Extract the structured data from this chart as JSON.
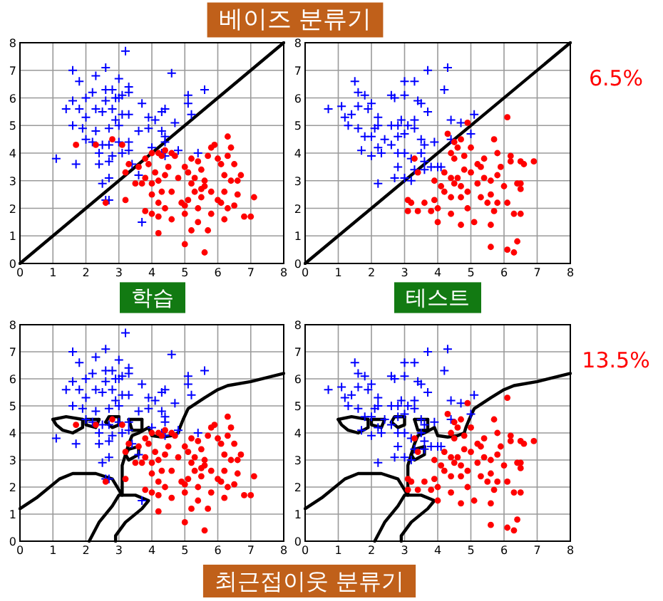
{
  "chart_data": [
    {
      "type": "scatter",
      "xlim": [
        0,
        8
      ],
      "ylim": [
        0,
        8
      ],
      "xticks": [
        0,
        1,
        2,
        3,
        4,
        5,
        6,
        7,
        8
      ],
      "yticks": [
        0,
        1,
        2,
        3,
        4,
        5,
        6,
        7,
        8
      ],
      "grid": true,
      "annotations": [
        "베이즈 분류기",
        "학습"
      ],
      "series": [
        {
          "color": "#0000ff",
          "marker": "cross",
          "x": [
            1.6,
            2.6,
            3.2,
            2.3,
            1.8,
            4.6,
            3.0,
            3.3,
            2.2,
            2.6,
            2.8,
            3.1,
            3.3,
            1.6,
            2.0,
            2.6,
            2.9,
            3.0,
            5.1,
            5.6,
            1.4,
            1.8,
            2.3,
            2.5,
            2.8,
            3.1,
            3.7,
            4.3,
            4.4,
            5.1,
            1.6,
            2.0,
            2.9,
            3.3,
            3.9,
            4.1,
            4.7,
            5.2,
            1.9,
            2.3,
            2.7,
            3.0,
            3.6,
            3.9,
            4.3,
            4.4,
            2.0,
            2.2,
            2.5,
            2.7,
            3.0,
            3.3,
            4.0,
            4.4,
            4.8,
            2.4,
            2.8,
            3.1,
            3.3,
            1.1,
            1.7,
            2.4,
            2.7,
            3.4,
            5.4,
            3.6,
            2.5,
            2.7,
            2.7,
            2.6,
            3.7,
            4.4,
            4.3
          ],
          "values": [
            7.0,
            7.1,
            7.7,
            6.8,
            6.6,
            6.9,
            6.7,
            6.4,
            6.2,
            6.3,
            6.3,
            6.1,
            6.2,
            5.9,
            6.0,
            5.9,
            6.0,
            6.0,
            6.1,
            6.3,
            5.6,
            5.6,
            5.6,
            5.5,
            5.6,
            5.4,
            5.8,
            5.5,
            5.6,
            5.8,
            5.0,
            5.3,
            5.2,
            5.4,
            5.3,
            5.2,
            5.1,
            5.4,
            4.9,
            4.8,
            4.9,
            5.0,
            4.8,
            4.9,
            4.8,
            4.6,
            4.5,
            4.4,
            4.3,
            4.3,
            4.4,
            4.4,
            4.2,
            4.4,
            4.1,
            4.0,
            3.9,
            4.0,
            4.1,
            3.8,
            3.6,
            3.6,
            3.7,
            3.6,
            4.0,
            3.2,
            2.9,
            3.1,
            2.3,
            2.3,
            1.5,
            3.9,
            4.0
          ]
        },
        {
          "color": "#ff0000",
          "marker": "circle",
          "x": [
            1.7,
            2.3,
            2.8,
            3.1,
            3.3,
            3.2,
            2.6,
            3.2,
            3.6,
            3.8,
            3.9,
            4.0,
            4.2,
            4.3,
            4.4,
            4.6,
            4.7,
            4.1,
            4.0,
            4.2,
            4.3,
            4.0,
            4.2,
            4.4,
            4.6,
            4.4,
            4.5,
            4.8,
            5.0,
            5.1,
            5.3,
            5.4,
            5.5,
            5.6,
            5.7,
            5.8,
            5.9,
            6.0,
            6.1,
            6.3,
            6.4,
            6.3,
            6.5,
            6.2,
            6.4,
            6.7,
            6.6,
            5.2,
            5.3,
            5.5,
            5.6,
            5.8,
            6.0,
            6.2,
            6.1,
            6.6,
            7.1,
            5.0,
            5.1,
            5.4,
            5.8,
            6.3,
            6.2,
            6.5,
            6.8,
            7.0,
            4.0,
            4.2,
            4.6,
            5.0,
            5.0,
            5.2,
            5.4,
            5.7,
            4.2,
            5.6,
            3.8,
            3.5,
            3.7,
            4.9,
            5.2,
            5.5,
            3.8
          ],
          "values": [
            4.3,
            4.3,
            4.5,
            4.3,
            3.6,
            3.3,
            2.2,
            2.3,
            3.5,
            3.1,
            3.6,
            4.0,
            4.0,
            3.9,
            4.1,
            4.0,
            3.9,
            3.3,
            2.9,
            3.0,
            2.6,
            2.5,
            2.2,
            2.0,
            2.6,
            3.2,
            3.5,
            3.1,
            3.5,
            3.3,
            3.1,
            3.7,
            3.4,
            3.0,
            3.9,
            4.2,
            4.3,
            3.8,
            3.6,
            4.6,
            4.2,
            3.9,
            3.6,
            3.2,
            3.0,
            3.2,
            3.0,
            2.9,
            2.6,
            2.4,
            2.8,
            2.6,
            2.3,
            2.6,
            2.2,
            2.5,
            2.4,
            2.1,
            2.3,
            2.0,
            1.8,
            2.0,
            1.6,
            2.1,
            1.7,
            1.7,
            1.8,
            1.7,
            1.6,
            1.8,
            0.7,
            1.2,
            1.5,
            1.2,
            1.1,
            0.4,
            1.9,
            2.9,
            2.9,
            2.2,
            3.8,
            2.7,
            3.8
          ]
        },
        {
          "type": "line",
          "color": "#000000",
          "marker": "none",
          "x": [
            0,
            8
          ],
          "values": [
            0,
            8
          ]
        }
      ]
    },
    {
      "type": "scatter",
      "xlim": [
        0,
        8
      ],
      "ylim": [
        0,
        8
      ],
      "xticks": [
        0,
        1,
        2,
        3,
        4,
        5,
        6,
        7,
        8
      ],
      "yticks": [
        0,
        1,
        2,
        3,
        4,
        5,
        6,
        7,
        8
      ],
      "grid": true,
      "annotations": [
        "6.5%",
        "테스트"
      ],
      "series": [
        {
          "color": "#0000ff",
          "marker": "cross",
          "x": [
            0.7,
            1.1,
            1.5,
            1.6,
            1.8,
            1.2,
            1.4,
            1.6,
            1.9,
            2.0,
            2.2,
            2.6,
            2.7,
            3.0,
            3.0,
            3.3,
            3.5,
            3.4,
            3.7,
            4.2,
            3.7,
            4.3,
            1.3,
            1.6,
            2.1,
            2.2,
            2.6,
            2.8,
            2.9,
            3.1,
            3.3,
            2.8,
            3.0,
            3.3,
            3.5,
            3.6,
            3.9,
            4.4,
            4.7,
            5.1,
            4.4,
            5.0,
            1.8,
            2.0,
            2.4,
            2.2,
            2.6,
            1.7,
            2.0,
            2.3,
            2.8,
            3.0,
            3.2,
            3.5,
            3.6,
            3.8,
            2.8,
            3.3,
            2.7,
            3.0,
            3.2,
            2.2,
            4.1,
            4.0,
            3.6
          ],
          "values": [
            5.6,
            5.7,
            6.6,
            6.2,
            6.1,
            5.3,
            5.4,
            5.7,
            5.6,
            5.8,
            5.3,
            6.1,
            6.0,
            6.6,
            6.1,
            6.6,
            5.8,
            5.9,
            5.5,
            6.3,
            7.0,
            7.1,
            5.0,
            4.9,
            4.9,
            5.0,
            5.0,
            5.0,
            5.2,
            5.0,
            5.2,
            4.6,
            4.7,
            4.9,
            4.5,
            4.3,
            4.4,
            5.2,
            5.1,
            5.4,
            4.5,
            4.7,
            4.6,
            4.6,
            4.5,
            4.2,
            4.3,
            4.1,
            3.9,
            4.0,
            4.0,
            4.0,
            3.8,
            4.0,
            3.7,
            3.5,
            3.5,
            3.4,
            3.1,
            3.1,
            3.0,
            2.9,
            3.5,
            3.5,
            3.4
          ]
        },
        {
          "color": "#ff0000",
          "marker": "circle",
          "x": [
            3.4,
            3.3,
            4.3,
            4.5,
            4.7,
            4.6,
            4.4,
            4.5,
            4.8,
            5.0,
            4.9,
            6.1,
            5.7,
            5.8,
            5.2,
            5.4,
            5.3,
            5.0,
            4.8,
            4.6,
            4.4,
            4.2,
            3.9,
            4.1,
            4.5,
            4.7,
            5.2,
            5.4,
            5.6,
            5.8,
            5.9,
            6.2,
            6.2,
            6.5,
            6.6,
            6.9,
            6.0,
            6.4,
            6.5,
            6.5,
            5.6,
            5.8,
            5.5,
            5.7,
            6.1,
            6.3,
            6.5,
            4.9,
            4.7,
            4.4,
            4.2,
            4.0,
            3.9,
            3.6,
            3.8,
            3.1,
            3.2,
            3.1,
            3.4,
            4.0,
            4.4,
            4.7,
            5.1,
            5.6,
            5.6,
            6.1,
            6.3,
            6.4,
            4.9,
            5.3
          ],
          "values": [
            3.3,
            3.8,
            4.7,
            4.4,
            4.5,
            4.2,
            4.0,
            3.8,
            3.9,
            4.2,
            5.1,
            5.3,
            4.5,
            4.0,
            3.6,
            3.8,
            3.5,
            3.3,
            3.4,
            3.1,
            3.1,
            3.3,
            3.0,
            2.8,
            2.9,
            2.8,
            2.9,
            3.1,
            3.0,
            3.2,
            3.5,
            3.7,
            3.9,
            3.7,
            3.6,
            3.7,
            2.8,
            2.9,
            2.7,
            2.9,
            2.5,
            2.2,
            2.2,
            1.9,
            2.2,
            1.8,
            1.8,
            2.6,
            2.4,
            2.4,
            2.6,
            2.0,
            2.3,
            2.2,
            1.9,
            2.3,
            2.2,
            1.9,
            1.9,
            1.5,
            1.8,
            1.4,
            1.5,
            1.4,
            0.6,
            0.5,
            0.4,
            0.8,
            2.0,
            2.4
          ]
        },
        {
          "type": "line",
          "color": "#000000",
          "marker": "none",
          "x": [
            0,
            8
          ],
          "values": [
            0,
            8
          ]
        }
      ]
    },
    {
      "type": "scatter",
      "xlim": [
        0,
        8
      ],
      "ylim": [
        0,
        8
      ],
      "xticks": [
        0,
        1,
        2,
        3,
        4,
        5,
        6,
        7,
        8
      ],
      "yticks": [
        0,
        1,
        2,
        3,
        4,
        5,
        6,
        7,
        8
      ],
      "grid": true,
      "annotations": [
        "최근접이웃 분류기"
      ],
      "series": [
        {
          "color": "#0000ff",
          "marker": "cross",
          "x": [
            1.6,
            2.6,
            3.2,
            2.3,
            1.8,
            4.6,
            3.0,
            3.3,
            2.2,
            2.6,
            2.8,
            3.1,
            3.3,
            1.6,
            2.0,
            2.6,
            2.9,
            3.0,
            5.1,
            5.6,
            1.4,
            1.8,
            2.3,
            2.5,
            2.8,
            3.1,
            3.7,
            4.3,
            4.4,
            5.1,
            1.6,
            2.0,
            2.9,
            3.3,
            3.9,
            4.1,
            4.7,
            5.2,
            1.9,
            2.3,
            2.7,
            3.0,
            3.6,
            3.9,
            4.3,
            4.4,
            2.0,
            2.2,
            2.5,
            2.7,
            3.0,
            3.3,
            4.0,
            4.4,
            4.8,
            2.4,
            2.8,
            3.1,
            3.3,
            1.1,
            1.7,
            2.4,
            2.7,
            3.4,
            5.4,
            3.6,
            2.5,
            2.7,
            2.7,
            2.6,
            3.7,
            4.4,
            4.3
          ],
          "values": [
            7.0,
            7.1,
            7.7,
            6.8,
            6.6,
            6.9,
            6.7,
            6.4,
            6.2,
            6.3,
            6.3,
            6.1,
            6.2,
            5.9,
            6.0,
            5.9,
            6.0,
            6.0,
            6.1,
            6.3,
            5.6,
            5.6,
            5.6,
            5.5,
            5.6,
            5.4,
            5.8,
            5.5,
            5.6,
            5.8,
            5.0,
            5.3,
            5.2,
            5.4,
            5.3,
            5.2,
            5.1,
            5.4,
            4.9,
            4.8,
            4.9,
            5.0,
            4.8,
            4.9,
            4.8,
            4.6,
            4.5,
            4.4,
            4.3,
            4.3,
            4.4,
            4.4,
            4.2,
            4.4,
            4.1,
            4.0,
            3.9,
            4.0,
            4.1,
            3.8,
            3.6,
            3.6,
            3.7,
            3.6,
            4.0,
            3.2,
            2.9,
            3.1,
            2.3,
            2.3,
            1.5,
            3.9,
            4.0
          ]
        },
        {
          "color": "#ff0000",
          "marker": "circle",
          "x": [
            1.7,
            2.3,
            2.8,
            3.1,
            3.3,
            3.2,
            2.6,
            3.2,
            3.6,
            3.8,
            3.9,
            4.0,
            4.2,
            4.3,
            4.4,
            4.6,
            4.7,
            4.1,
            4.0,
            4.2,
            4.3,
            4.0,
            4.2,
            4.4,
            4.6,
            4.4,
            4.5,
            4.8,
            5.0,
            5.1,
            5.3,
            5.4,
            5.5,
            5.6,
            5.7,
            5.8,
            5.9,
            6.0,
            6.1,
            6.3,
            6.4,
            6.3,
            6.5,
            6.2,
            6.4,
            6.7,
            6.6,
            5.2,
            5.3,
            5.5,
            5.6,
            5.8,
            6.0,
            6.2,
            6.1,
            6.6,
            7.1,
            5.0,
            5.1,
            5.4,
            5.8,
            6.3,
            6.2,
            6.5,
            6.8,
            7.0,
            4.0,
            4.2,
            4.6,
            5.0,
            5.0,
            5.2,
            5.4,
            5.7,
            4.2,
            5.6,
            3.8,
            3.5,
            3.7,
            4.9,
            5.2,
            5.5,
            3.8
          ],
          "values": [
            4.3,
            4.3,
            4.5,
            4.3,
            3.6,
            3.3,
            2.2,
            2.3,
            3.5,
            3.1,
            3.6,
            4.0,
            4.0,
            3.9,
            4.1,
            4.0,
            3.9,
            3.3,
            2.9,
            3.0,
            2.6,
            2.5,
            2.2,
            2.0,
            2.6,
            3.2,
            3.5,
            3.1,
            3.5,
            3.3,
            3.1,
            3.7,
            3.4,
            3.0,
            3.9,
            4.2,
            4.3,
            3.8,
            3.6,
            4.6,
            4.2,
            3.9,
            3.6,
            3.2,
            3.0,
            3.2,
            3.0,
            2.9,
            2.6,
            2.4,
            2.8,
            2.6,
            2.3,
            2.6,
            2.2,
            2.5,
            2.4,
            2.1,
            2.3,
            2.0,
            1.8,
            2.0,
            1.6,
            2.1,
            1.7,
            1.7,
            1.8,
            1.7,
            1.6,
            1.8,
            0.7,
            1.2,
            1.5,
            1.2,
            1.1,
            0.4,
            1.9,
            2.9,
            2.9,
            2.2,
            3.8,
            2.7,
            3.8
          ]
        },
        {
          "type": "line",
          "color": "#000000",
          "marker": "none",
          "x": [
            8,
            7,
            6.3,
            6,
            5.6,
            5.1,
            4.95,
            4.85,
            4.8,
            4.6,
            4.3,
            4.0,
            3.9,
            3.6,
            3.4,
            3.3,
            3.2,
            3.1,
            3.1,
            3.1,
            3.5,
            3.9,
            3.7,
            3.2,
            2.9,
            2.9
          ],
          "values": [
            6.2,
            5.9,
            5.75,
            5.6,
            5.3,
            4.9,
            4.5,
            4.2,
            4.0,
            3.9,
            3.85,
            3.9,
            4.2,
            4.0,
            3.9,
            3.6,
            3.2,
            2.8,
            2.3,
            1.7,
            1.7,
            1.5,
            1.2,
            0.7,
            0.2,
            0
          ]
        },
        {
          "type": "line",
          "color": "#000000",
          "marker": "none",
          "x": [
            0,
            0.5,
            1.2,
            1.6,
            2.3,
            2.8,
            3.0,
            3.1,
            3.0,
            2.8,
            2.4,
            2.1
          ],
          "values": [
            1.2,
            1.6,
            2.3,
            2.5,
            2.5,
            2.3,
            1.9,
            1.7,
            1.7,
            1.3,
            0.7,
            0
          ]
        },
        {
          "type": "line",
          "color": "#000000",
          "marker": "none",
          "x": [
            1.0,
            1.4,
            1.9
          ],
          "values": [
            4.5,
            4.6,
            4.5
          ]
        },
        {
          "type": "line",
          "color": "#000000",
          "marker": "none",
          "x": [
            1.0,
            1.1,
            1.3,
            1.6,
            1.9,
            1.9
          ],
          "values": [
            4.5,
            4.3,
            4.1,
            4.0,
            4.2,
            4.5
          ]
        },
        {
          "type": "line",
          "color": "#000000",
          "marker": "none",
          "x": [
            2.0,
            2.4
          ],
          "values": [
            4.5,
            4.5
          ]
        },
        {
          "type": "line",
          "color": "#000000",
          "marker": "none",
          "x": [
            2.0,
            2.0,
            2.3,
            2.4
          ],
          "values": [
            4.5,
            4.3,
            4.2,
            4.5
          ]
        },
        {
          "type": "line",
          "color": "#000000",
          "marker": "none",
          "x": [
            2.6,
            2.7,
            3.0
          ],
          "values": [
            4.4,
            4.6,
            4.6
          ]
        },
        {
          "type": "line",
          "color": "#000000",
          "marker": "none",
          "x": [
            2.6,
            2.8,
            3.0,
            3.0
          ],
          "values": [
            4.4,
            4.2,
            4.3,
            4.6
          ]
        },
        {
          "type": "line",
          "color": "#000000",
          "marker": "none",
          "x": [
            3.3,
            3.7
          ],
          "values": [
            4.5,
            4.5
          ]
        },
        {
          "type": "line",
          "color": "#000000",
          "marker": "none",
          "x": [
            3.3,
            3.4,
            3.7,
            3.7
          ],
          "values": [
            4.5,
            4.1,
            4.1,
            4.5
          ]
        },
        {
          "type": "line",
          "color": "#000000",
          "marker": "none",
          "x": [
            3.2,
            3.3,
            3.6
          ],
          "values": [
            3.2,
            3.4,
            3.5
          ]
        },
        {
          "type": "line",
          "color": "#000000",
          "marker": "none",
          "x": [
            3.2,
            3.3,
            3.6,
            3.6
          ],
          "values": [
            3.2,
            3.0,
            3.2,
            3.5
          ]
        }
      ]
    },
    {
      "type": "scatter",
      "xlim": [
        0,
        8
      ],
      "ylim": [
        0,
        8
      ],
      "xticks": [
        0,
        1,
        2,
        3,
        4,
        5,
        6,
        7,
        8
      ],
      "yticks": [
        0,
        1,
        2,
        3,
        4,
        5,
        6,
        7,
        8
      ],
      "grid": true,
      "annotations": [
        "13.5%"
      ],
      "series": [
        {
          "color": "#0000ff",
          "marker": "cross",
          "x": [
            0.7,
            1.1,
            1.5,
            1.6,
            1.8,
            1.2,
            1.4,
            1.6,
            1.9,
            2.0,
            2.2,
            2.6,
            2.7,
            3.0,
            3.0,
            3.3,
            3.5,
            3.4,
            3.7,
            4.2,
            3.7,
            4.3,
            1.3,
            1.6,
            2.1,
            2.2,
            2.6,
            2.8,
            2.9,
            3.1,
            3.3,
            2.8,
            3.0,
            3.3,
            3.5,
            3.6,
            3.9,
            4.4,
            4.7,
            5.1,
            4.4,
            5.0,
            1.8,
            2.0,
            2.4,
            2.2,
            2.6,
            1.7,
            2.0,
            2.3,
            2.8,
            3.0,
            3.2,
            3.5,
            3.6,
            3.8,
            2.8,
            3.3,
            2.7,
            3.0,
            3.2,
            2.2,
            4.1,
            4.0,
            3.6
          ],
          "values": [
            5.6,
            5.7,
            6.6,
            6.2,
            6.1,
            5.3,
            5.4,
            5.7,
            5.6,
            5.8,
            5.3,
            6.1,
            6.0,
            6.6,
            6.1,
            6.6,
            5.8,
            5.9,
            5.5,
            6.3,
            7.0,
            7.1,
            5.0,
            4.9,
            4.9,
            5.0,
            5.0,
            5.0,
            5.2,
            5.0,
            5.2,
            4.6,
            4.7,
            4.9,
            4.5,
            4.3,
            4.4,
            5.2,
            5.1,
            5.4,
            4.5,
            4.7,
            4.6,
            4.6,
            4.5,
            4.2,
            4.3,
            4.1,
            3.9,
            4.0,
            4.0,
            4.0,
            3.8,
            4.0,
            3.7,
            3.5,
            3.5,
            3.4,
            3.1,
            3.1,
            3.0,
            2.9,
            3.5,
            3.5,
            3.4
          ]
        },
        {
          "color": "#ff0000",
          "marker": "circle",
          "x": [
            3.4,
            3.3,
            4.3,
            4.5,
            4.7,
            4.6,
            4.4,
            4.5,
            4.8,
            5.0,
            4.9,
            6.1,
            5.7,
            5.8,
            5.2,
            5.4,
            5.3,
            5.0,
            4.8,
            4.6,
            4.4,
            4.2,
            3.9,
            4.1,
            4.5,
            4.7,
            5.2,
            5.4,
            5.6,
            5.8,
            5.9,
            6.2,
            6.2,
            6.5,
            6.6,
            6.9,
            6.0,
            6.4,
            6.5,
            6.5,
            5.6,
            5.8,
            5.5,
            5.7,
            6.1,
            6.3,
            6.5,
            4.9,
            4.7,
            4.4,
            4.2,
            4.0,
            3.9,
            3.6,
            3.8,
            3.1,
            3.2,
            3.1,
            3.4,
            4.0,
            4.4,
            4.7,
            5.1,
            5.6,
            5.6,
            6.1,
            6.3,
            6.4,
            4.9,
            5.3
          ],
          "values": [
            3.3,
            3.8,
            4.7,
            4.4,
            4.5,
            4.2,
            4.0,
            3.8,
            3.9,
            4.2,
            5.1,
            5.3,
            4.5,
            4.0,
            3.6,
            3.8,
            3.5,
            3.3,
            3.4,
            3.1,
            3.1,
            3.3,
            3.0,
            2.8,
            2.9,
            2.8,
            2.9,
            3.1,
            3.0,
            3.2,
            3.5,
            3.7,
            3.9,
            3.7,
            3.6,
            3.7,
            2.8,
            2.9,
            2.7,
            2.9,
            2.5,
            2.2,
            2.2,
            1.9,
            2.2,
            1.8,
            1.8,
            2.6,
            2.4,
            2.4,
            2.6,
            2.0,
            2.3,
            2.2,
            1.9,
            2.3,
            2.2,
            1.9,
            1.9,
            1.5,
            1.8,
            1.4,
            1.5,
            1.4,
            0.6,
            0.5,
            0.4,
            0.8,
            2.0,
            2.4
          ]
        },
        {
          "type": "line",
          "color": "#000000",
          "marker": "none",
          "x": [
            8,
            7,
            6.3,
            6,
            5.6,
            5.1,
            4.95,
            4.85,
            4.8,
            4.6,
            4.3,
            4.0,
            3.9,
            3.6,
            3.4,
            3.3,
            3.2,
            3.1,
            3.1,
            3.1,
            3.5,
            3.9,
            3.7,
            3.2,
            2.9,
            2.9
          ],
          "values": [
            6.2,
            5.9,
            5.75,
            5.6,
            5.3,
            4.9,
            4.5,
            4.2,
            4.0,
            3.9,
            3.85,
            3.9,
            4.2,
            4.0,
            3.9,
            3.6,
            3.2,
            2.8,
            2.3,
            1.7,
            1.7,
            1.5,
            1.2,
            0.7,
            0.2,
            0
          ]
        },
        {
          "type": "line",
          "color": "#000000",
          "marker": "none",
          "x": [
            0,
            0.5,
            1.2,
            1.6,
            2.3,
            2.8,
            3.0,
            3.1,
            3.0,
            2.8,
            2.4,
            2.1
          ],
          "values": [
            1.2,
            1.6,
            2.3,
            2.5,
            2.5,
            2.3,
            1.9,
            1.7,
            1.7,
            1.3,
            0.7,
            0
          ]
        },
        {
          "type": "line",
          "color": "#000000",
          "marker": "none",
          "x": [
            1.0,
            1.4,
            1.9
          ],
          "values": [
            4.5,
            4.6,
            4.5
          ]
        },
        {
          "type": "line",
          "color": "#000000",
          "marker": "none",
          "x": [
            1.0,
            1.1,
            1.3,
            1.6,
            1.9,
            1.9
          ],
          "values": [
            4.5,
            4.3,
            4.1,
            4.0,
            4.2,
            4.5
          ]
        },
        {
          "type": "line",
          "color": "#000000",
          "marker": "none",
          "x": [
            2.0,
            2.4
          ],
          "values": [
            4.5,
            4.5
          ]
        },
        {
          "type": "line",
          "color": "#000000",
          "marker": "none",
          "x": [
            2.0,
            2.0,
            2.3,
            2.4
          ],
          "values": [
            4.5,
            4.3,
            4.2,
            4.5
          ]
        },
        {
          "type": "line",
          "color": "#000000",
          "marker": "none",
          "x": [
            2.6,
            2.7,
            3.0
          ],
          "values": [
            4.4,
            4.6,
            4.6
          ]
        },
        {
          "type": "line",
          "color": "#000000",
          "marker": "none",
          "x": [
            2.6,
            2.8,
            3.0,
            3.0
          ],
          "values": [
            4.4,
            4.2,
            4.3,
            4.6
          ]
        },
        {
          "type": "line",
          "color": "#000000",
          "marker": "none",
          "x": [
            3.3,
            3.7
          ],
          "values": [
            4.5,
            4.5
          ]
        },
        {
          "type": "line",
          "color": "#000000",
          "marker": "none",
          "x": [
            3.3,
            3.4,
            3.7,
            3.7
          ],
          "values": [
            4.5,
            4.1,
            4.1,
            4.5
          ]
        },
        {
          "type": "line",
          "color": "#000000",
          "marker": "none",
          "x": [
            3.2,
            3.3,
            3.6
          ],
          "values": [
            3.2,
            3.4,
            3.5
          ]
        },
        {
          "type": "line",
          "color": "#000000",
          "marker": "none",
          "x": [
            3.2,
            3.3,
            3.6,
            3.6
          ],
          "values": [
            3.2,
            3.0,
            3.2,
            3.5
          ]
        }
      ]
    }
  ]
}
